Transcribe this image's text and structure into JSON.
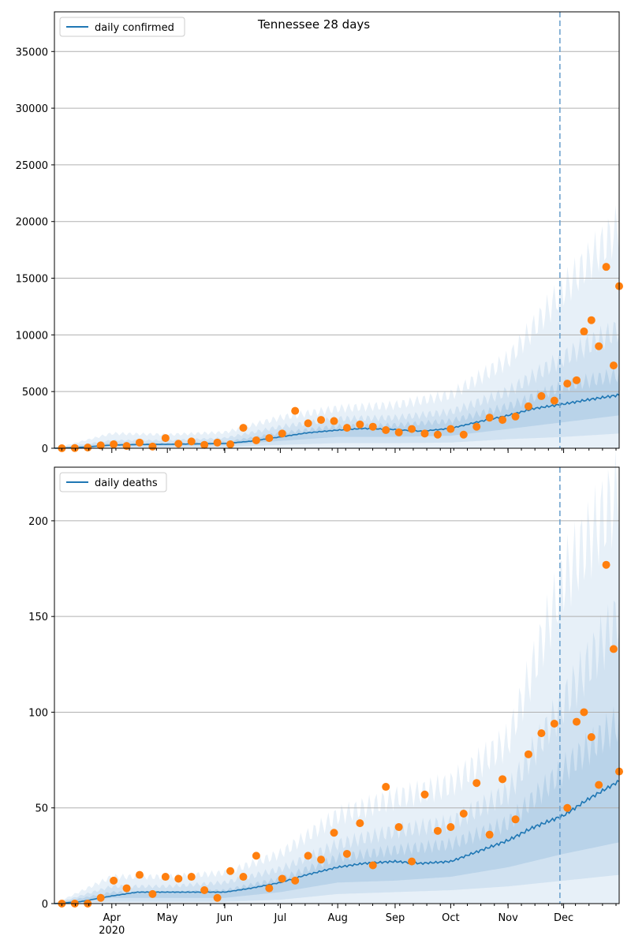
{
  "chart_data": [
    {
      "type": "line",
      "title": "Tennessee 28 days",
      "legend": {
        "placement": "top-left",
        "entries": [
          "daily confirmed"
        ]
      },
      "grid": "horizontal",
      "x_range": [
        "2020-03-01",
        "2020-12-31"
      ],
      "x_ticks": [
        "Apr",
        "May",
        "Jun",
        "Jul",
        "Aug",
        "Sep",
        "Oct",
        "Nov",
        "Dec"
      ],
      "x_tick_dates": [
        "2020-04-01",
        "2020-05-01",
        "2020-06-01",
        "2020-07-01",
        "2020-08-01",
        "2020-09-01",
        "2020-10-01",
        "2020-11-01",
        "2020-12-01"
      ],
      "x_year_label": "2020",
      "ylim": [
        0,
        38500
      ],
      "y_ticks": [
        0,
        5000,
        10000,
        15000,
        20000,
        25000,
        30000,
        35000
      ],
      "vline_date": "2020-11-29",
      "series": [
        {
          "name": "daily confirmed",
          "color": "#1f77b4",
          "dates": [
            "2020-03-01",
            "2020-03-15",
            "2020-04-01",
            "2020-04-15",
            "2020-05-01",
            "2020-05-15",
            "2020-06-01",
            "2020-06-15",
            "2020-07-01",
            "2020-07-15",
            "2020-08-01",
            "2020-08-15",
            "2020-09-01",
            "2020-09-15",
            "2020-10-01",
            "2020-10-15",
            "2020-11-01",
            "2020-11-15",
            "2020-12-01",
            "2020-12-15",
            "2020-12-31"
          ],
          "values": [
            0,
            80,
            280,
            330,
            350,
            380,
            420,
            620,
            1000,
            1350,
            1600,
            1750,
            1650,
            1500,
            1750,
            2300,
            2900,
            3500,
            3900,
            4300,
            4700
          ]
        }
      ],
      "bands": [
        {
          "color": "#e3edf7",
          "dates": [
            "2020-03-01",
            "2020-04-01",
            "2020-05-01",
            "2020-06-01",
            "2020-07-01",
            "2020-08-01",
            "2020-09-01",
            "2020-10-01",
            "2020-11-01",
            "2020-12-01",
            "2020-12-31"
          ],
          "low": [
            0,
            0,
            0,
            0,
            0,
            0,
            0,
            0,
            0,
            0,
            0
          ],
          "high": [
            0,
            1300,
            1200,
            1400,
            2700,
            3500,
            3800,
            4700,
            7800,
            14000,
            19500
          ]
        },
        {
          "color": "#cddff0",
          "dates": [
            "2020-03-01",
            "2020-04-01",
            "2020-05-01",
            "2020-06-01",
            "2020-07-01",
            "2020-08-01",
            "2020-09-01",
            "2020-10-01",
            "2020-11-01",
            "2020-12-01",
            "2020-12-31"
          ],
          "low": [
            0,
            80,
            100,
            120,
            300,
            450,
            450,
            500,
            800,
            1000,
            1300
          ],
          "high": [
            0,
            700,
            700,
            900,
            1900,
            2600,
            2700,
            3200,
            5000,
            8000,
            10500
          ]
        },
        {
          "color": "#b5d0e8",
          "dates": [
            "2020-03-01",
            "2020-04-01",
            "2020-05-01",
            "2020-06-01",
            "2020-07-01",
            "2020-08-01",
            "2020-09-01",
            "2020-10-01",
            "2020-11-01",
            "2020-12-01",
            "2020-12-31"
          ],
          "low": [
            0,
            200,
            230,
            280,
            650,
            1000,
            1000,
            1100,
            1700,
            2300,
            2900
          ],
          "high": [
            0,
            420,
            450,
            560,
            1350,
            1950,
            2050,
            2400,
            3700,
            5500,
            6500
          ]
        }
      ],
      "observed": {
        "color": "#ff7f0e",
        "dates": [
          "2020-03-05",
          "2020-03-12",
          "2020-03-19",
          "2020-03-26",
          "2020-04-02",
          "2020-04-09",
          "2020-04-16",
          "2020-04-23",
          "2020-04-30",
          "2020-05-07",
          "2020-05-14",
          "2020-05-21",
          "2020-05-28",
          "2020-06-04",
          "2020-06-11",
          "2020-06-18",
          "2020-06-25",
          "2020-07-02",
          "2020-07-09",
          "2020-07-16",
          "2020-07-23",
          "2020-07-30",
          "2020-08-06",
          "2020-08-13",
          "2020-08-20",
          "2020-08-27",
          "2020-09-03",
          "2020-09-10",
          "2020-09-17",
          "2020-09-24",
          "2020-10-01",
          "2020-10-08",
          "2020-10-15",
          "2020-10-22",
          "2020-10-29",
          "2020-11-05",
          "2020-11-12",
          "2020-11-19",
          "2020-11-26",
          "2020-12-03",
          "2020-12-08",
          "2020-12-12",
          "2020-12-16",
          "2020-12-20",
          "2020-12-24",
          "2020-12-28",
          "2020-12-31"
        ],
        "values": [
          0,
          20,
          60,
          250,
          350,
          200,
          500,
          150,
          900,
          400,
          600,
          300,
          500,
          350,
          1800,
          700,
          900,
          1300,
          3300,
          2200,
          2500,
          2400,
          1800,
          2100,
          1900,
          1600,
          1400,
          1700,
          1300,
          1200,
          1700,
          1200,
          1900,
          2700,
          2500,
          2800,
          3700,
          4600,
          4200,
          5700,
          6000,
          10300,
          11300,
          9000,
          16000,
          7300,
          14300
        ]
      }
    },
    {
      "type": "line",
      "title": "",
      "legend": {
        "placement": "top-left",
        "entries": [
          "daily deaths"
        ]
      },
      "grid": "horizontal",
      "x_range": [
        "2020-03-01",
        "2020-12-31"
      ],
      "x_ticks": [
        "Apr",
        "May",
        "Jun",
        "Jul",
        "Aug",
        "Sep",
        "Oct",
        "Nov",
        "Dec"
      ],
      "x_tick_dates": [
        "2020-04-01",
        "2020-05-01",
        "2020-06-01",
        "2020-07-01",
        "2020-08-01",
        "2020-09-01",
        "2020-10-01",
        "2020-11-01",
        "2020-12-01"
      ],
      "x_year_label": "2020",
      "ylim": [
        0,
        228
      ],
      "y_ticks": [
        0,
        50,
        100,
        150,
        200
      ],
      "vline_date": "2020-11-29",
      "series": [
        {
          "name": "daily deaths",
          "color": "#1f77b4",
          "dates": [
            "2020-03-01",
            "2020-03-15",
            "2020-04-01",
            "2020-04-15",
            "2020-05-01",
            "2020-05-15",
            "2020-06-01",
            "2020-06-15",
            "2020-07-01",
            "2020-07-15",
            "2020-08-01",
            "2020-08-15",
            "2020-09-01",
            "2020-09-15",
            "2020-10-01",
            "2020-10-15",
            "2020-11-01",
            "2020-11-15",
            "2020-12-01",
            "2020-12-15",
            "2020-12-31"
          ],
          "values": [
            0,
            1,
            4,
            6,
            6,
            6,
            6,
            8,
            11,
            15,
            19,
            21,
            22,
            21,
            22,
            27,
            33,
            40,
            46,
            55,
            64
          ]
        }
      ],
      "bands": [
        {
          "color": "#e3edf7",
          "dates": [
            "2020-03-01",
            "2020-04-01",
            "2020-05-01",
            "2020-06-01",
            "2020-07-01",
            "2020-08-01",
            "2020-09-01",
            "2020-10-01",
            "2020-11-01",
            "2020-12-01",
            "2020-12-31"
          ],
          "low": [
            0,
            0,
            0,
            0,
            0,
            0,
            0,
            0,
            0,
            0,
            0
          ],
          "high": [
            0,
            14,
            14,
            16,
            26,
            46,
            55,
            62,
            85,
            170,
            215
          ]
        },
        {
          "color": "#cddff0",
          "dates": [
            "2020-03-01",
            "2020-04-01",
            "2020-05-01",
            "2020-06-01",
            "2020-07-01",
            "2020-08-01",
            "2020-09-01",
            "2020-10-01",
            "2020-11-01",
            "2020-12-01",
            "2020-12-31"
          ],
          "low": [
            0,
            1,
            1,
            1,
            2,
            5,
            6,
            7,
            9,
            12,
            15
          ],
          "high": [
            0,
            9,
            9,
            11,
            18,
            31,
            38,
            42,
            58,
            105,
            150
          ]
        },
        {
          "color": "#b5d0e8",
          "dates": [
            "2020-03-01",
            "2020-04-01",
            "2020-05-01",
            "2020-06-01",
            "2020-07-01",
            "2020-08-01",
            "2020-09-01",
            "2020-10-01",
            "2020-11-01",
            "2020-12-01",
            "2020-12-31"
          ],
          "low": [
            0,
            3,
            3,
            3,
            6,
            11,
            12,
            14,
            19,
            26,
            32
          ],
          "high": [
            0,
            6,
            6,
            7,
            13,
            24,
            28,
            31,
            42,
            70,
            95
          ]
        }
      ],
      "observed": {
        "color": "#ff7f0e",
        "dates": [
          "2020-03-05",
          "2020-03-12",
          "2020-03-19",
          "2020-03-26",
          "2020-04-02",
          "2020-04-09",
          "2020-04-16",
          "2020-04-23",
          "2020-04-30",
          "2020-05-07",
          "2020-05-14",
          "2020-05-21",
          "2020-05-28",
          "2020-06-04",
          "2020-06-11",
          "2020-06-18",
          "2020-06-25",
          "2020-07-02",
          "2020-07-09",
          "2020-07-16",
          "2020-07-23",
          "2020-07-30",
          "2020-08-06",
          "2020-08-13",
          "2020-08-20",
          "2020-08-27",
          "2020-09-03",
          "2020-09-10",
          "2020-09-17",
          "2020-09-24",
          "2020-10-01",
          "2020-10-08",
          "2020-10-15",
          "2020-10-22",
          "2020-10-29",
          "2020-11-05",
          "2020-11-12",
          "2020-11-19",
          "2020-11-26",
          "2020-12-03",
          "2020-12-08",
          "2020-12-12",
          "2020-12-16",
          "2020-12-20",
          "2020-12-24",
          "2020-12-28",
          "2020-12-31"
        ],
        "values": [
          0,
          0,
          0,
          3,
          12,
          8,
          15,
          5,
          14,
          13,
          14,
          7,
          3,
          17,
          14,
          25,
          8,
          13,
          12,
          25,
          23,
          37,
          26,
          42,
          20,
          61,
          40,
          22,
          57,
          38,
          40,
          47,
          63,
          36,
          65,
          44,
          78,
          89,
          94,
          50,
          95,
          100,
          87,
          62,
          177,
          133,
          69
        ]
      }
    }
  ]
}
